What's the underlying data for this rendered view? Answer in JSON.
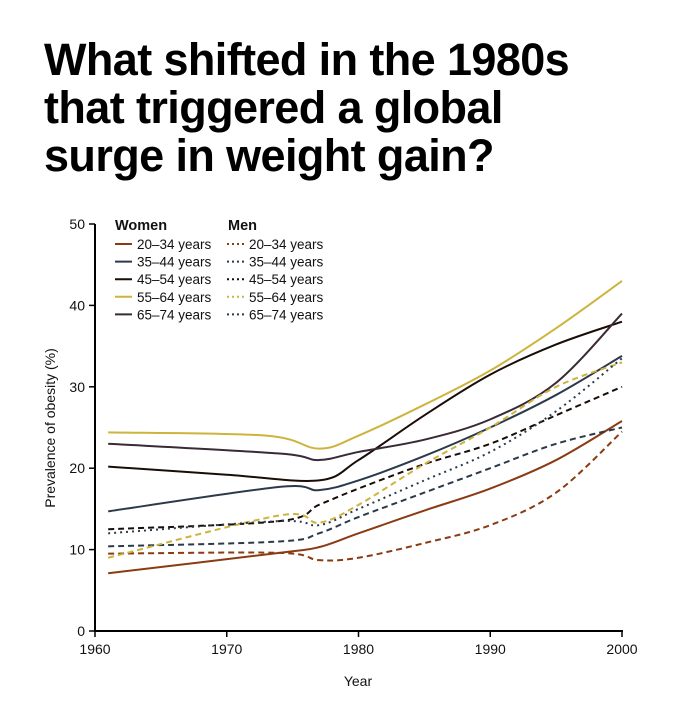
{
  "title_lines": [
    "What shifted in the 1980s",
    "that triggered a global",
    "surge in weight gain?"
  ],
  "chart_data": {
    "type": "line",
    "title": "What shifted in the 1980s that triggered a global surge in weight gain?",
    "xlabel": "Year",
    "ylabel": "Prevalence of obesity (%)",
    "xlim": [
      1960,
      2000
    ],
    "ylim": [
      0,
      50
    ],
    "xticks": [
      1960,
      1970,
      1980,
      1990,
      2000
    ],
    "yticks": [
      0,
      10,
      20,
      30,
      40,
      50
    ],
    "grid": false,
    "legend_placement": "top-left",
    "legend_groups": [
      "Women",
      "Men"
    ],
    "series": [
      {
        "name": "20–34 years",
        "group": "Women",
        "style": "solid",
        "color": "#8a3b12",
        "x": [
          1961,
          1974,
          1977,
          1980,
          1985,
          1990,
          1995,
          2000
        ],
        "y": [
          7.1,
          9.6,
          10.3,
          12,
          14.8,
          17.5,
          21,
          25.8
        ]
      },
      {
        "name": "35–44 years",
        "group": "Women",
        "style": "solid",
        "color": "#2b3a4a",
        "x": [
          1961,
          1974,
          1977,
          1980,
          1985,
          1990,
          1995,
          2000
        ],
        "y": [
          14.7,
          17.7,
          17.3,
          18.5,
          21.5,
          25,
          29,
          33.8
        ]
      },
      {
        "name": "45–54 years",
        "group": "Women",
        "style": "solid",
        "color": "#1a0d08",
        "x": [
          1961,
          1970,
          1977,
          1980,
          1985,
          1990,
          1995,
          2000
        ],
        "y": [
          20.2,
          19.2,
          18.5,
          21,
          26.5,
          31.5,
          35.2,
          38
        ]
      },
      {
        "name": "55–64 years",
        "group": "Women",
        "style": "solid",
        "color": "#cdb43c",
        "x": [
          1961,
          1973,
          1977,
          1980,
          1985,
          1990,
          1995,
          2000
        ],
        "y": [
          24.4,
          24,
          22.4,
          24,
          27.8,
          32,
          37.2,
          43
        ]
      },
      {
        "name": "65–74 years",
        "group": "Women",
        "style": "solid",
        "color": "#3a2a36",
        "x": [
          1961,
          1974,
          1977,
          1980,
          1985,
          1990,
          1995,
          2000
        ],
        "y": [
          23,
          21.8,
          21,
          22,
          23.5,
          26,
          30.5,
          39
        ]
      },
      {
        "name": "20–34 years",
        "group": "Men",
        "style": "dashed",
        "color": "#8a3b12",
        "x": [
          1961,
          1974,
          1977,
          1980,
          1985,
          1990,
          1995,
          2000
        ],
        "y": [
          9.5,
          9.6,
          8.7,
          9,
          10.8,
          13,
          17,
          24.5
        ]
      },
      {
        "name": "35–44 years",
        "group": "Men",
        "style": "dashed",
        "color": "#2b3a4a",
        "x": [
          1961,
          1974,
          1977,
          1980,
          1985,
          1990,
          1995,
          2000
        ],
        "y": [
          10.4,
          11,
          12,
          14,
          17,
          20,
          23,
          25
        ]
      },
      {
        "name": "45–54 years",
        "group": "Men",
        "style": "dashed",
        "color": "#1a0d08",
        "x": [
          1961,
          1974,
          1977,
          1980,
          1985,
          1990,
          1995,
          2000
        ],
        "y": [
          12.5,
          13.5,
          15.5,
          17.5,
          20.5,
          23,
          26.5,
          30
        ]
      },
      {
        "name": "55–64 years",
        "group": "Men",
        "style": "dashed",
        "color": "#cdb43c",
        "x": [
          1961,
          1974,
          1977,
          1980,
          1985,
          1990,
          1995,
          2000
        ],
        "y": [
          9,
          14.2,
          13.3,
          15.5,
          20.5,
          25,
          30,
          33
        ]
      },
      {
        "name": "65–74 years",
        "group": "Men",
        "style": "dotted",
        "color": "#2b3a4a",
        "x": [
          1961,
          1974,
          1977,
          1980,
          1985,
          1990,
          1995,
          2000
        ],
        "y": [
          12,
          13.5,
          13,
          15,
          18.5,
          22,
          27,
          33.5
        ]
      }
    ]
  }
}
